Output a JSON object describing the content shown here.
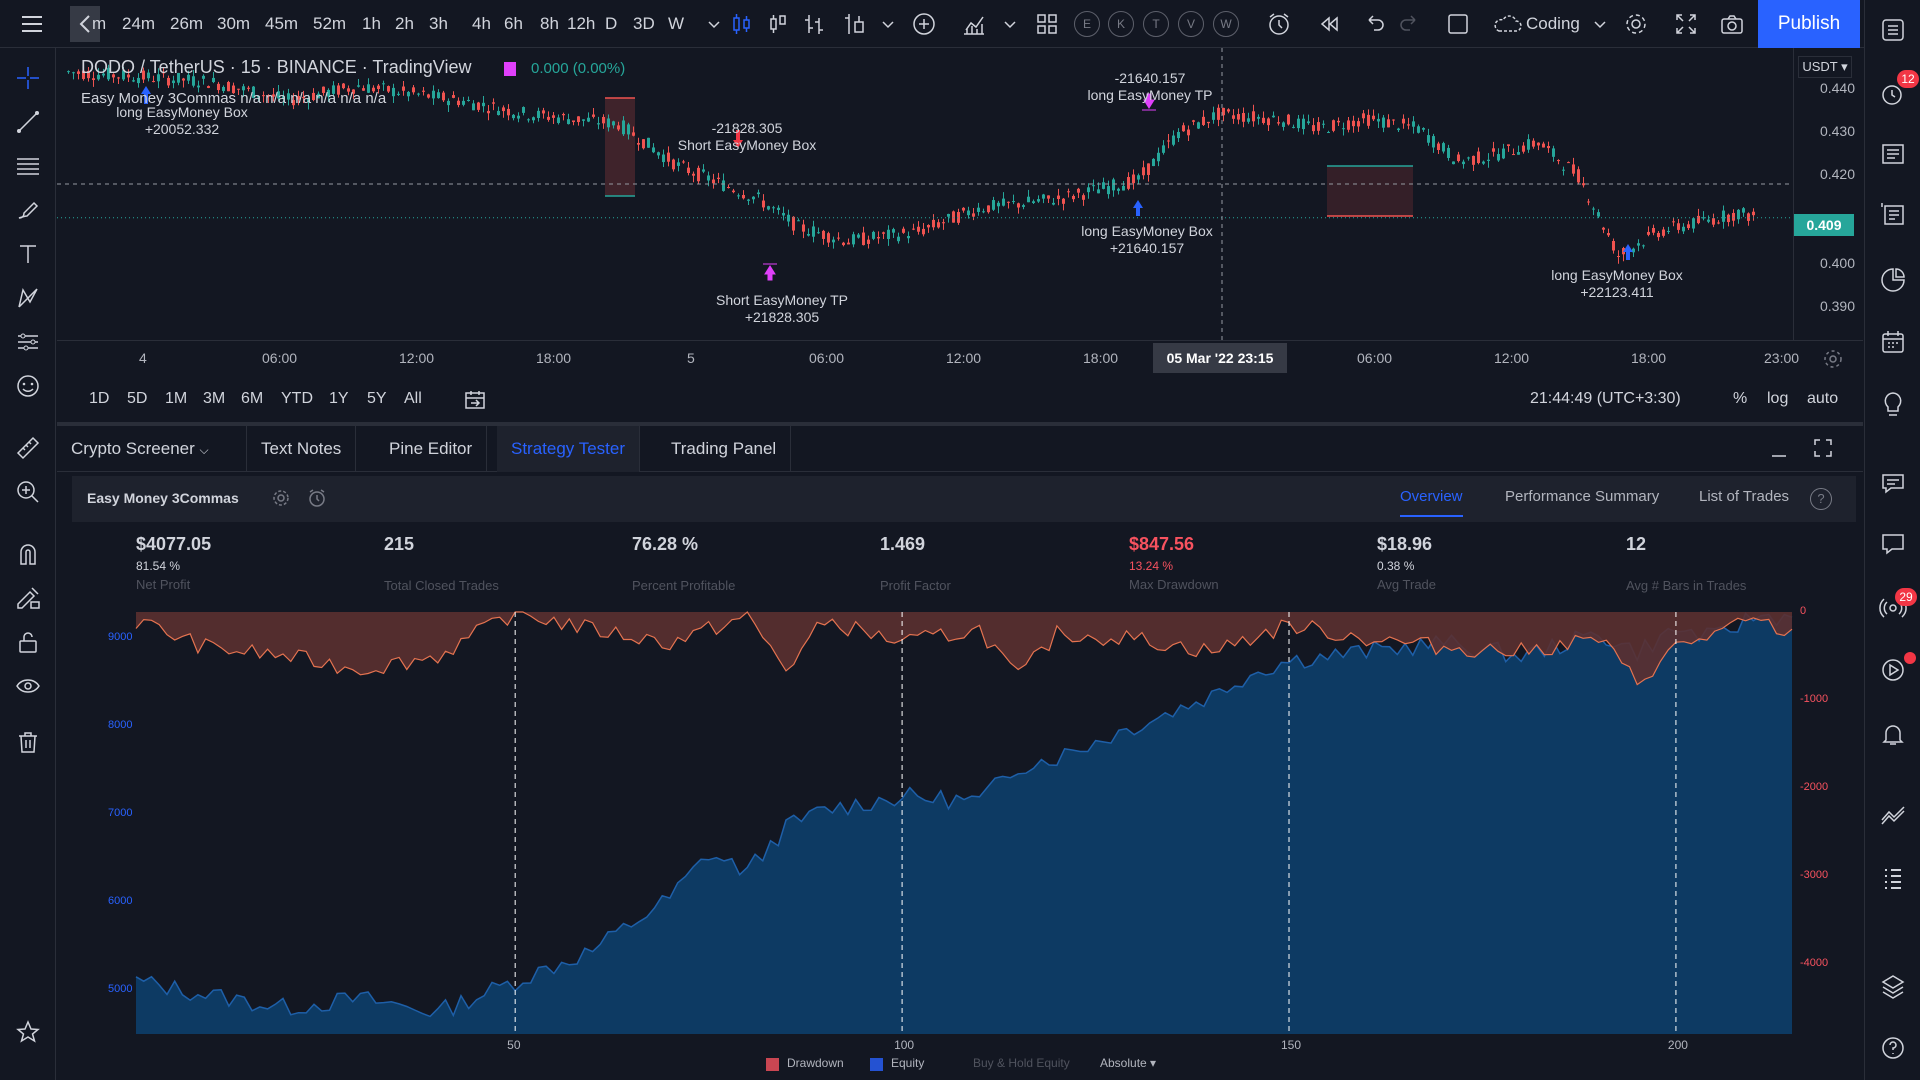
{
  "toolbar": {
    "timeframes": [
      "24m",
      "26m",
      "30m",
      "45m",
      "52m",
      "1h",
      "2h",
      "3h",
      "4h",
      "6h",
      "8h",
      "12h",
      "D",
      "3D",
      "W"
    ],
    "first_tf_partial": "m",
    "indicator_letters": [
      "E",
      "K",
      "T",
      "V",
      "W"
    ],
    "layout_name": "Coding",
    "publish_label": "Publish"
  },
  "symbol": {
    "title": "DODO / TetherUS · 15 · BINANCE · TradingView",
    "change": "0.000 (0.00%)",
    "indicator_legend": "Easy Money 3Commas n/a n/a n/a n/a n/a n/a"
  },
  "price_scale": {
    "currency": "USDT",
    "ticks": [
      "0.440",
      "0.430",
      "0.420",
      "0.400",
      "0.390"
    ],
    "current_price": "0.409"
  },
  "annotations": [
    {
      "line1": "long EasyMoney Box",
      "line2": "+20052.332"
    },
    {
      "line1": "-21828.305",
      "line2": "Short EasyMoney Box"
    },
    {
      "line1": "Short EasyMoney TP",
      "line2": "+21828.305"
    },
    {
      "line1": "-21640.157",
      "line2": "long EasyMoney TP"
    },
    {
      "line1": "long EasyMoney Box",
      "line2": "+21640.157"
    },
    {
      "line1": "long EasyMoney Box",
      "line2": "+22123.411"
    }
  ],
  "time_axis": {
    "ticks": [
      "4",
      "06:00",
      "12:00",
      "18:00",
      "5",
      "06:00",
      "12:00",
      "18:00",
      "06:00",
      "12:00",
      "18:00",
      "23:00"
    ],
    "crosshair_label": "05 Mar '22   23:15"
  },
  "range_bar": {
    "ranges": [
      "1D",
      "5D",
      "1M",
      "3M",
      "6M",
      "YTD",
      "1Y",
      "5Y",
      "All"
    ],
    "clock": "21:44:49 (UTC+3:30)",
    "percent": "%",
    "log": "log",
    "auto": "auto"
  },
  "bottom_tabs": [
    "Crypto Screener",
    "Text Notes",
    "Pine Editor",
    "Strategy Tester",
    "Trading Panel"
  ],
  "strategy": {
    "name": "Easy Money 3Commas",
    "tabs": [
      "Overview",
      "Performance Summary",
      "List of Trades"
    ],
    "metrics": [
      {
        "value": "$4077.05",
        "sub": "81.54 %",
        "label": "Net Profit"
      },
      {
        "value": "215",
        "sub": "",
        "label": "Total Closed Trades"
      },
      {
        "value": "76.28 %",
        "sub": "",
        "label": "Percent Profitable"
      },
      {
        "value": "1.469",
        "sub": "",
        "label": "Profit Factor"
      },
      {
        "value": "$847.56",
        "sub": "13.24 %",
        "label": "Max Drawdown"
      },
      {
        "value": "$18.96",
        "sub": "0.38 %",
        "label": "Avg Trade"
      },
      {
        "value": "12",
        "sub": "",
        "label": "Avg # Bars in Trades"
      }
    ]
  },
  "chart_data": {
    "type": "area",
    "title": "",
    "xlabel": "",
    "ylabel": "",
    "x_ticks": [
      50,
      100,
      150,
      200
    ],
    "xlim": [
      1,
      215
    ],
    "series": [
      {
        "name": "Equity",
        "color": "#2962ff",
        "axis": "left",
        "ylim": [
          4500,
          9300
        ],
        "ticks": [
          5000,
          6000,
          7000,
          8000,
          9000
        ],
        "x": [
          1,
          10,
          20,
          30,
          40,
          50,
          60,
          70,
          75,
          80,
          85,
          90,
          100,
          110,
          115,
          120,
          130,
          140,
          145,
          150,
          160,
          170,
          180,
          190,
          195,
          200,
          205,
          210,
          215
        ],
        "values": [
          5100,
          4950,
          4800,
          4900,
          4750,
          5100,
          5450,
          6050,
          6550,
          6350,
          6850,
          7050,
          7200,
          7150,
          7550,
          7650,
          8000,
          8350,
          8600,
          8750,
          8850,
          8950,
          8800,
          9050,
          8850,
          9100,
          9000,
          9250,
          9250
        ]
      },
      {
        "name": "Drawdown",
        "color": "#f7525f",
        "axis": "right",
        "ylim": [
          -4800,
          0
        ],
        "ticks": [
          0,
          -1000,
          -2000,
          -3000,
          -4000
        ],
        "x": [
          1,
          10,
          20,
          30,
          40,
          50,
          60,
          70,
          80,
          85,
          90,
          100,
          110,
          115,
          120,
          130,
          140,
          150,
          160,
          170,
          180,
          190,
          195,
          200,
          205,
          210,
          215
        ],
        "values": [
          -100,
          -400,
          -500,
          -650,
          -500,
          0,
          -200,
          -350,
          -50,
          -650,
          -100,
          -350,
          -200,
          -750,
          -250,
          -300,
          -450,
          -150,
          -300,
          -400,
          -450,
          -300,
          -800,
          -400,
          -250,
          -100,
          -250
        ]
      },
      {
        "name": "Buy & Hold Equity",
        "color": "#50535e",
        "axis": "left",
        "values": []
      }
    ],
    "legend_mode": "Absolute"
  },
  "colors": {
    "up": "#26a69a",
    "down": "#ef5350",
    "accent": "#2962ff",
    "tp_marker": "#e040fb"
  }
}
